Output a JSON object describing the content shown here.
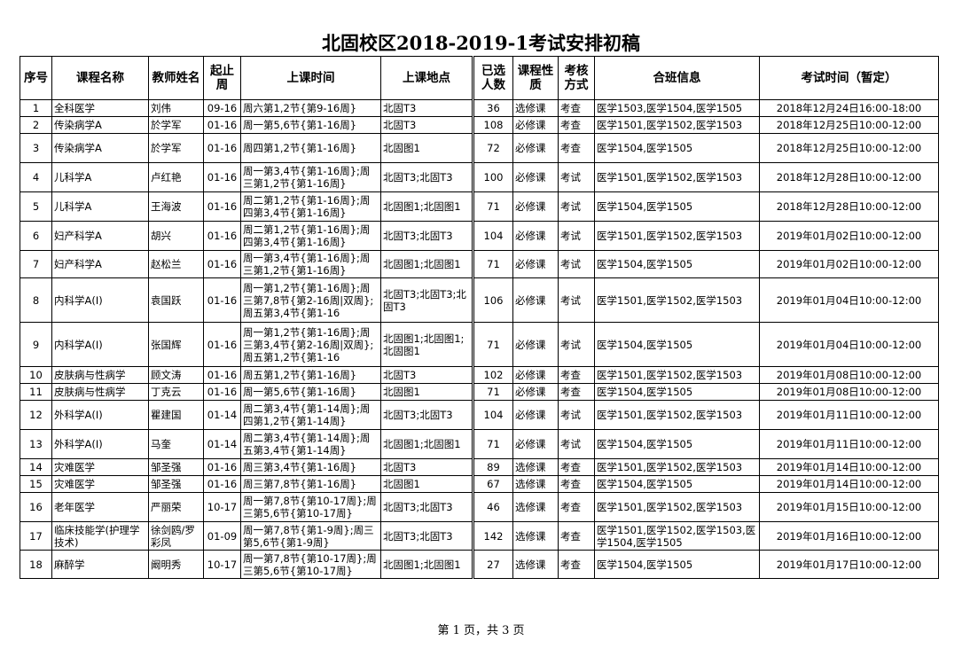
{
  "title": "北固校区2018-2019-1考试安排初稿",
  "headers": [
    "序号",
    "课程名称",
    "教师姓名",
    "起止周",
    "上课时间",
    "上课地点",
    "已选人数",
    "课程性质",
    "考核方式",
    "合班信息",
    "考试时间（暂定）"
  ],
  "rows": [
    [
      "1",
      "全科医学",
      "刘伟",
      "09-16",
      "周六第1,2节{第9-16周}",
      "北固T3",
      "36",
      "选修课",
      "考查",
      "医学1503,医学1504,医学1505",
      "2018年12月24日16:00-18:00"
    ],
    [
      "2",
      "传染病学A",
      "於学军",
      "01-16",
      "周一第5,6节{第1-16周}",
      "北固T3",
      "108",
      "必修课",
      "考查",
      "医学1501,医学1502,医学1503",
      "2018年12月25日10:00-12:00"
    ],
    [
      "3",
      "传染病学A",
      "於学军",
      "01-16",
      "周四第1,2节{第1-16周}",
      "北固图1",
      "72",
      "必修课",
      "考查",
      "医学1504,医学1505",
      "2018年12月25日10:00-12:00"
    ],
    [
      "4",
      "儿科学A",
      "卢红艳",
      "01-16",
      "周一第3,4节{第1-16周};周三第1,2节{第1-16周}",
      "北固T3;北固T3",
      "100",
      "必修课",
      "考试",
      "医学1501,医学1502,医学1503",
      "2018年12月28日10:00-12:00"
    ],
    [
      "5",
      "儿科学A",
      "王海波",
      "01-16",
      "周二第1,2节{第1-16周};周四第3,4节{第1-16周}",
      "北固图1;北固图1",
      "71",
      "必修课",
      "考试",
      "医学1504,医学1505",
      "2018年12月28日10:00-12:00"
    ],
    [
      "6",
      "妇产科学A",
      "胡兴",
      "01-16",
      "周二第1,2节{第1-16周};周四第3,4节{第1-16周}",
      "北固T3;北固T3",
      "104",
      "必修课",
      "考试",
      "医学1501,医学1502,医学1503",
      "2019年01月02日10:00-12:00"
    ],
    [
      "7",
      "妇产科学A",
      "赵松兰",
      "01-16",
      "周一第3,4节{第1-16周};周三第1,2节{第1-16周}",
      "北固图1;北固图1",
      "71",
      "必修课",
      "考试",
      "医学1504,医学1505",
      "2019年01月02日10:00-12:00"
    ],
    [
      "8",
      "内科学A(I)",
      "袁国跃",
      "01-16",
      "周一第1,2节{第1-16周};周三第7,8节{第2-16周|双周};周五第3,4节{第1-16",
      "北固T3;北固T3;北固T3",
      "106",
      "必修课",
      "考试",
      "医学1501,医学1502,医学1503",
      "2019年01月04日10:00-12:00"
    ],
    [
      "9",
      "内科学A(I)",
      "张国辉",
      "01-16",
      "周一第1,2节{第1-16周};周三第3,4节{第2-16周|双周};周五第1,2节{第1-16",
      "北固图1;北固图1;北固图1",
      "71",
      "必修课",
      "考试",
      "医学1504,医学1505",
      "2019年01月04日10:00-12:00"
    ],
    [
      "10",
      "皮肤病与性病学",
      "顾文涛",
      "01-16",
      "周五第1,2节{第1-16周}",
      "北固T3",
      "102",
      "必修课",
      "考查",
      "医学1501,医学1502,医学1503",
      "2019年01月08日10:00-12:00"
    ],
    [
      "11",
      "皮肤病与性病学",
      "丁克云",
      "01-16",
      "周一第5,6节{第1-16周}",
      "北固图1",
      "71",
      "必修课",
      "考查",
      "医学1504,医学1505",
      "2019年01月08日10:00-12:00"
    ],
    [
      "12",
      "外科学A(I)",
      "瞿建国",
      "01-14",
      "周二第3,4节{第1-14周};周四第1,2节{第1-14周}",
      "北固T3;北固T3",
      "104",
      "必修课",
      "考试",
      "医学1501,医学1502,医学1503",
      "2019年01月11日10:00-12:00"
    ],
    [
      "13",
      "外科学A(I)",
      "马奎",
      "01-14",
      "周二第3,4节{第1-14周};周五第3,4节{第1-14周}",
      "北固图1;北固图1",
      "71",
      "必修课",
      "考试",
      "医学1504,医学1505",
      "2019年01月11日10:00-12:00"
    ],
    [
      "14",
      "灾难医学",
      "邹圣强",
      "01-16",
      "周三第3,4节{第1-16周}",
      "北固T3",
      "89",
      "选修课",
      "考查",
      "医学1501,医学1502,医学1503",
      "2019年01月14日10:00-12:00"
    ],
    [
      "15",
      "灾难医学",
      "邹圣强",
      "01-16",
      "周三第7,8节{第1-16周}",
      "北固图1",
      "67",
      "选修课",
      "考查",
      "医学1504,医学1505",
      "2019年01月14日10:00-12:00"
    ],
    [
      "16",
      "老年医学",
      "严丽荣",
      "10-17",
      "周一第7,8节{第10-17周};周三第5,6节{第10-17周}",
      "北固T3;北固T3",
      "46",
      "选修课",
      "考查",
      "医学1501,医学1502,医学1503",
      "2019年01月15日10:00-12:00"
    ],
    [
      "17",
      "临床技能学(护理学技术)",
      "徐剑鸥/罗彩凤",
      "01-09",
      "周一第7,8节{第1-9周};周三第5,6节{第1-9周}",
      "北固T3;北固T3",
      "142",
      "选修课",
      "考查",
      "医学1501,医学1502,医学1503,医学1504,医学1505",
      "2019年01月16日10:00-12:00"
    ],
    [
      "18",
      "麻醉学",
      "阚明秀",
      "10-17",
      "周一第7,8节{第10-17周};周三第5,6节{第10-17周}",
      "北固图1;北固图1",
      "27",
      "选修课",
      "考查",
      "医学1504,医学1505",
      "2019年01月17日10:00-12:00"
    ]
  ],
  "footer": "第 1 页，共 3 页"
}
